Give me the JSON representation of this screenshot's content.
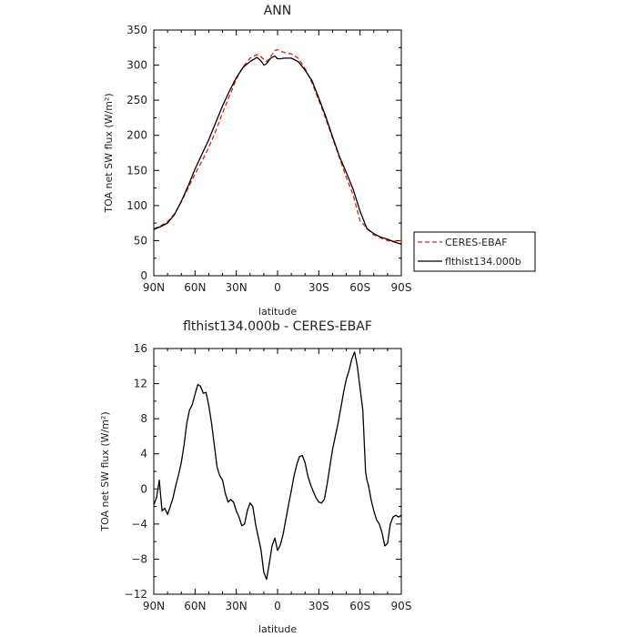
{
  "chart_data": [
    {
      "type": "line",
      "title": "ANN",
      "xlabel": "latitude",
      "ylabel": "TOA net SW flux (W/m²)",
      "x_direction": "90N to 90S (north on the left)",
      "xlim": [
        90,
        -90
      ],
      "ylim": [
        0,
        350
      ],
      "xticks": [
        90,
        60,
        30,
        0,
        -30,
        -60,
        -90
      ],
      "xtick_labels": [
        "90N",
        "60N",
        "30N",
        "0",
        "30S",
        "60S",
        "90S"
      ],
      "yticks": [
        0,
        50,
        100,
        150,
        200,
        250,
        300,
        350
      ],
      "ytick_labels": [
        "0",
        "50",
        "100",
        "150",
        "200",
        "250",
        "300",
        "350"
      ],
      "grid": false,
      "legend_placement": "outside-right",
      "series": [
        {
          "name": "CERES-EBAF",
          "color": "#e31a1c",
          "style": "dashed",
          "x": [
            90,
            85,
            80,
            75,
            70,
            65,
            60,
            55,
            50,
            45,
            40,
            35,
            30,
            25,
            20,
            15,
            12,
            10,
            8,
            5,
            2,
            0,
            -2,
            -5,
            -10,
            -15,
            -20,
            -25,
            -30,
            -35,
            -40,
            -45,
            -50,
            -55,
            -60,
            -65,
            -70,
            -75,
            -80,
            -85,
            -90
          ],
          "y": [
            67,
            71,
            77,
            88,
            105,
            125,
            145,
            163,
            183,
            206,
            232,
            256,
            280,
            298,
            310,
            315,
            312,
            308,
            305,
            312,
            321,
            322,
            320,
            318,
            316,
            310,
            295,
            275,
            250,
            224,
            196,
            168,
            140,
            115,
            78,
            68,
            58,
            54,
            50,
            49,
            50
          ]
        },
        {
          "name": "flthist134.000b",
          "color": "#000000",
          "style": "solid",
          "x": [
            90,
            85,
            80,
            75,
            70,
            65,
            60,
            55,
            50,
            45,
            40,
            35,
            30,
            25,
            20,
            15,
            12,
            10,
            8,
            5,
            2,
            0,
            -2,
            -5,
            -10,
            -15,
            -20,
            -25,
            -30,
            -35,
            -40,
            -45,
            -50,
            -55,
            -60,
            -65,
            -70,
            -75,
            -80,
            -85,
            -90
          ],
          "y": [
            66,
            70,
            75,
            87,
            106,
            128,
            152,
            173,
            194,
            218,
            242,
            263,
            282,
            297,
            305,
            311,
            306,
            300,
            302,
            310,
            313,
            309,
            309,
            310,
            310,
            305,
            293,
            278,
            253,
            227,
            198,
            170,
            147,
            123,
            92,
            67,
            60,
            55,
            52,
            48,
            45
          ]
        }
      ]
    },
    {
      "type": "line",
      "title": "flthist134.000b - CERES-EBAF",
      "xlabel": "latitude",
      "ylabel": "TOA net SW flux (W/m²)",
      "x_direction": "90N to 90S (north on the left)",
      "xlim": [
        90,
        -90
      ],
      "ylim": [
        -12,
        16
      ],
      "xticks": [
        90,
        60,
        30,
        0,
        -30,
        -60,
        -90
      ],
      "xtick_labels": [
        "90N",
        "60N",
        "30N",
        "0",
        "30S",
        "60S",
        "90S"
      ],
      "yticks": [
        -12,
        -8,
        -4,
        0,
        4,
        8,
        12,
        16
      ],
      "ytick_labels": [
        "−12",
        "−8",
        "−4",
        "0",
        "4",
        "8",
        "12",
        "16"
      ],
      "grid": false,
      "series": [
        {
          "color": "#000000",
          "style": "solid",
          "x": [
            90,
            88,
            86,
            84,
            82,
            80,
            78,
            76,
            74,
            72,
            70,
            68,
            66,
            64,
            62,
            60,
            58,
            56,
            54,
            52,
            50,
            48,
            46,
            44,
            42,
            40,
            38,
            36,
            34,
            32,
            30,
            28,
            26,
            24,
            22,
            20,
            18,
            16,
            14,
            12,
            10,
            8,
            6,
            4,
            2,
            0,
            -2,
            -4,
            -6,
            -8,
            -10,
            -12,
            -14,
            -16,
            -18,
            -20,
            -22,
            -24,
            -26,
            -28,
            -30,
            -32,
            -34,
            -36,
            -38,
            -40,
            -42,
            -44,
            -46,
            -48,
            -50,
            -52,
            -54,
            -56,
            -58,
            -60,
            -62,
            -63,
            -64,
            -65,
            -66,
            -68,
            -70,
            -72,
            -74,
            -76,
            -78,
            -80,
            -82,
            -84,
            -86,
            -88,
            -90
          ],
          "y": [
            -1.8,
            -1.0,
            1.0,
            -2.5,
            -2.2,
            -2.9,
            -2.0,
            -1.0,
            0.4,
            1.6,
            3.0,
            5.0,
            7.5,
            9.0,
            9.6,
            10.8,
            11.9,
            11.7,
            10.9,
            11.0,
            9.5,
            7.5,
            5.0,
            2.5,
            1.5,
            1.0,
            -0.5,
            -1.5,
            -1.2,
            -1.5,
            -2.5,
            -3.2,
            -4.2,
            -4.0,
            -2.5,
            -1.6,
            -2.0,
            -4.0,
            -5.5,
            -7.0,
            -9.5,
            -10.3,
            -8.5,
            -6.5,
            -5.6,
            -7.0,
            -6.4,
            -5.2,
            -3.5,
            -1.8,
            -0.2,
            1.5,
            2.8,
            3.7,
            3.8,
            3.0,
            1.5,
            0.5,
            -0.3,
            -1.0,
            -1.5,
            -1.6,
            -1.2,
            0.5,
            2.5,
            4.5,
            6.0,
            7.5,
            9.2,
            11.0,
            12.5,
            13.5,
            14.8,
            15.6,
            14.0,
            11.5,
            9.0,
            5.5,
            2.0,
            1.0,
            0.5,
            -1.2,
            -2.5,
            -3.5,
            -4.0,
            -5.0,
            -6.5,
            -6.2,
            -4.0,
            -3.2,
            -3.0,
            -3.2,
            -3.0
          ]
        }
      ]
    }
  ]
}
